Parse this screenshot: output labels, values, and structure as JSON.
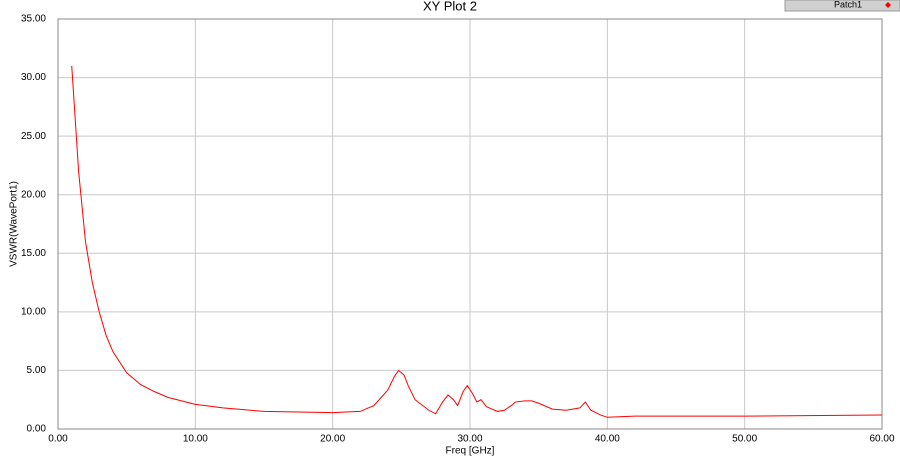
{
  "chart_data": {
    "type": "line",
    "title": "XY Plot 2",
    "x_label": "Freq [GHz]",
    "y_label": "VSWR(WavePort1)",
    "xlim": [
      0,
      60
    ],
    "ylim": [
      0,
      35
    ],
    "xticks": [
      {
        "value": 0,
        "label": "0.00"
      },
      {
        "value": 10,
        "label": "10.00"
      },
      {
        "value": 20,
        "label": "20.00"
      },
      {
        "value": 30,
        "label": "30.00"
      },
      {
        "value": 40,
        "label": "40.00"
      },
      {
        "value": 50,
        "label": "50.00"
      },
      {
        "value": 60,
        "label": "60.00"
      }
    ],
    "yticks": [
      {
        "value": 0,
        "label": "0.00"
      },
      {
        "value": 5,
        "label": "5.00"
      },
      {
        "value": 10,
        "label": "10.00"
      },
      {
        "value": 15,
        "label": "15.00"
      },
      {
        "value": 20,
        "label": "20.00"
      },
      {
        "value": 25,
        "label": "25.00"
      },
      {
        "value": 30,
        "label": "30.00"
      },
      {
        "value": 35,
        "label": "35.00"
      }
    ],
    "grid": true,
    "x": [
      1,
      1.5,
      2,
      2.5,
      3,
      3.5,
      4,
      5,
      6,
      7,
      8,
      10,
      12,
      15,
      20,
      22,
      23,
      24,
      24.5,
      24.8,
      25.2,
      25.5,
      26,
      27,
      27.5,
      28,
      28.4,
      28.8,
      29.1,
      29.5,
      29.8,
      30.2,
      30.5,
      30.8,
      31.2,
      32,
      32.5,
      33,
      33.3,
      34,
      34.5,
      35,
      36,
      37,
      38,
      38.4,
      38.8,
      39.5,
      40,
      42,
      50,
      60
    ],
    "series": [
      {
        "name": "Patch1",
        "color": "#ff0000",
        "values": [
          31,
          22,
          16,
          12.5,
          10,
          8,
          6.6,
          4.8,
          3.8,
          3.2,
          2.7,
          2.1,
          1.8,
          1.5,
          1.4,
          1.5,
          2.0,
          3.3,
          4.5,
          5.0,
          4.6,
          3.7,
          2.5,
          1.6,
          1.3,
          2.3,
          2.9,
          2.5,
          2.0,
          3.2,
          3.7,
          3.0,
          2.3,
          2.5,
          1.9,
          1.5,
          1.6,
          2.0,
          2.3,
          2.4,
          2.4,
          2.2,
          1.7,
          1.6,
          1.8,
          2.3,
          1.6,
          1.2,
          1.0,
          1.1,
          1.1,
          1.2
        ]
      }
    ]
  }
}
